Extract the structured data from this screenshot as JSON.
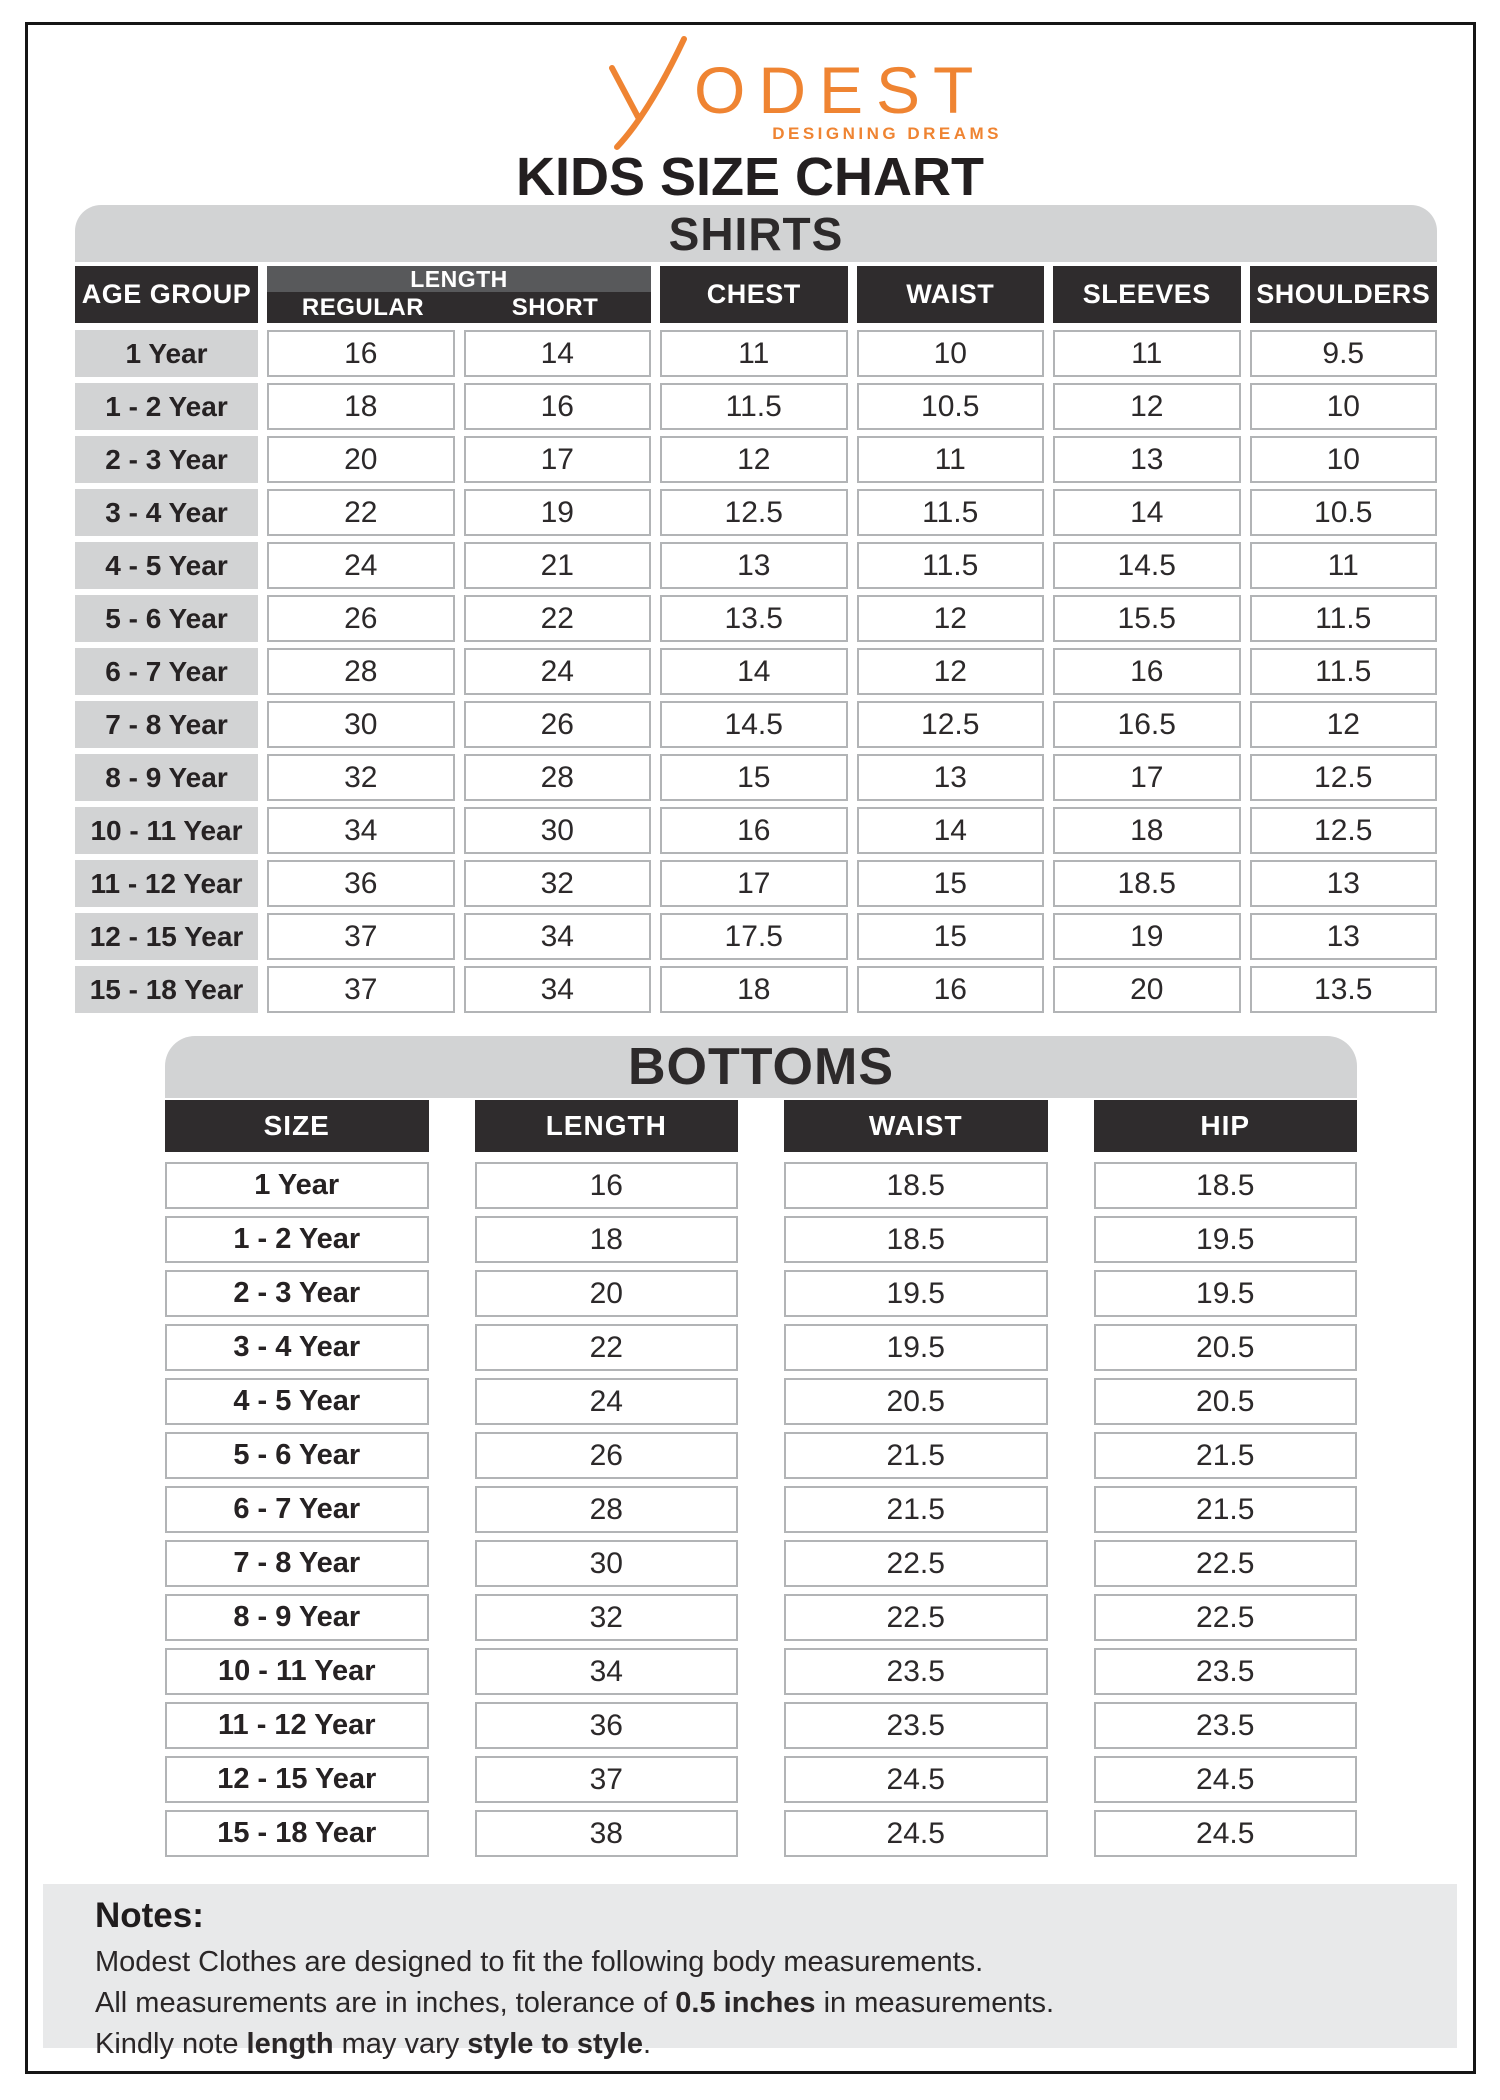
{
  "brand": {
    "name": "MODEST",
    "display_rest": "ODEST",
    "tagline": "DESIGNING DREAMS"
  },
  "page_title": "KIDS SIZE CHART",
  "colors": {
    "accent_orange": "#EF8432",
    "header_dark": "#2F2C2D",
    "length_gray": "#58595B",
    "band_gray": "#D2D3D4",
    "notes_bg": "#E8E9EA"
  },
  "shirts": {
    "section_title": "SHIRTS",
    "headers": {
      "age_group": "AGE GROUP",
      "length_group": "LENGTH",
      "regular": "REGULAR",
      "short": "SHORT",
      "chest": "CHEST",
      "waist": "WAIST",
      "sleeves": "SLEEVES",
      "shoulders": "SHOULDERS"
    },
    "rows": [
      {
        "age": "1 Year",
        "values": [
          "16",
          "14",
          "11",
          "10",
          "11",
          "9.5"
        ]
      },
      {
        "age": "1 - 2 Year",
        "values": [
          "18",
          "16",
          "11.5",
          "10.5",
          "12",
          "10"
        ]
      },
      {
        "age": "2 - 3 Year",
        "values": [
          "20",
          "17",
          "12",
          "11",
          "13",
          "10"
        ]
      },
      {
        "age": "3 - 4 Year",
        "values": [
          "22",
          "19",
          "12.5",
          "11.5",
          "14",
          "10.5"
        ]
      },
      {
        "age": "4 - 5 Year",
        "values": [
          "24",
          "21",
          "13",
          "11.5",
          "14.5",
          "11"
        ]
      },
      {
        "age": "5 - 6 Year",
        "values": [
          "26",
          "22",
          "13.5",
          "12",
          "15.5",
          "11.5"
        ]
      },
      {
        "age": "6 - 7 Year",
        "values": [
          "28",
          "24",
          "14",
          "12",
          "16",
          "11.5"
        ]
      },
      {
        "age": "7 - 8 Year",
        "values": [
          "30",
          "26",
          "14.5",
          "12.5",
          "16.5",
          "12"
        ]
      },
      {
        "age": "8 - 9 Year",
        "values": [
          "32",
          "28",
          "15",
          "13",
          "17",
          "12.5"
        ]
      },
      {
        "age": "10 - 11 Year",
        "values": [
          "34",
          "30",
          "16",
          "14",
          "18",
          "12.5"
        ]
      },
      {
        "age": "11 - 12 Year",
        "values": [
          "36",
          "32",
          "17",
          "15",
          "18.5",
          "13"
        ]
      },
      {
        "age": "12 - 15 Year",
        "values": [
          "37",
          "34",
          "17.5",
          "15",
          "19",
          "13"
        ]
      },
      {
        "age": "15 - 18 Year",
        "values": [
          "37",
          "34",
          "18",
          "16",
          "20",
          "13.5"
        ]
      }
    ]
  },
  "bottoms": {
    "section_title": "BOTTOMS",
    "headers": [
      "SIZE",
      "LENGTH",
      "WAIST",
      "HIP"
    ],
    "rows": [
      {
        "size": "1 Year",
        "values": [
          "16",
          "18.5",
          "18.5"
        ]
      },
      {
        "size": "1 - 2 Year",
        "values": [
          "18",
          "18.5",
          "19.5"
        ]
      },
      {
        "size": "2 - 3 Year",
        "values": [
          "20",
          "19.5",
          "19.5"
        ]
      },
      {
        "size": "3 - 4 Year",
        "values": [
          "22",
          "19.5",
          "20.5"
        ]
      },
      {
        "size": "4 - 5 Year",
        "values": [
          "24",
          "20.5",
          "20.5"
        ]
      },
      {
        "size": "5 - 6 Year",
        "values": [
          "26",
          "21.5",
          "21.5"
        ]
      },
      {
        "size": "6 - 7 Year",
        "values": [
          "28",
          "21.5",
          "21.5"
        ]
      },
      {
        "size": "7 - 8 Year",
        "values": [
          "30",
          "22.5",
          "22.5"
        ]
      },
      {
        "size": "8 - 9 Year",
        "values": [
          "32",
          "22.5",
          "22.5"
        ]
      },
      {
        "size": "10 - 11 Year",
        "values": [
          "34",
          "23.5",
          "23.5"
        ]
      },
      {
        "size": "11 - 12 Year",
        "values": [
          "36",
          "23.5",
          "23.5"
        ]
      },
      {
        "size": "12 - 15 Year",
        "values": [
          "37",
          "24.5",
          "24.5"
        ]
      },
      {
        "size": "15 - 18 Year",
        "values": [
          "38",
          "24.5",
          "24.5"
        ]
      }
    ]
  },
  "notes": {
    "heading": "Notes:",
    "line1": "Modest Clothes are designed to fit the following body measurements.",
    "line2_pre": "All measurements are in inches, tolerance of ",
    "line2_bold": "0.5 inches",
    "line2_post": " in measurements.",
    "line3_pre": "Kindly note ",
    "line3_bold1": "length",
    "line3_mid": " may vary ",
    "line3_bold2": "style to style",
    "line3_post": "."
  }
}
